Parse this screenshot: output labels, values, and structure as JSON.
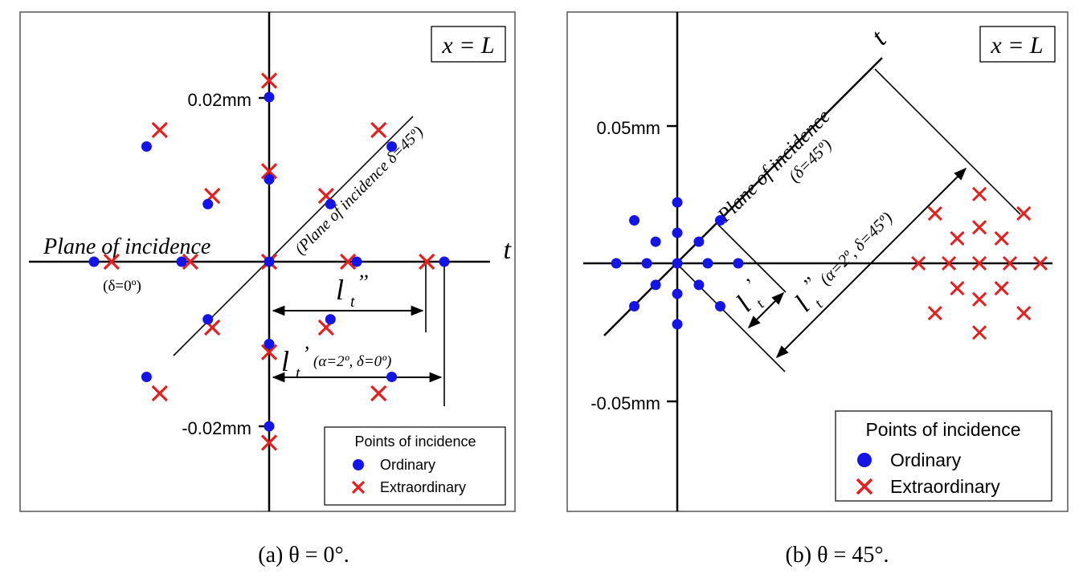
{
  "chart_data": [
    {
      "type": "scatter",
      "caption": "(a) θ = 0°.",
      "xlabel": "t",
      "corner_label": "x = L",
      "ytick_labels": [
        "0.02mm",
        "-0.02mm"
      ],
      "ylim": [
        -0.03,
        0.03
      ],
      "xlim": [
        -0.029,
        0.028
      ],
      "annotations": {
        "plane0": "Plane of incidence",
        "plane0_angle": "(δ=0º)",
        "plane45": "(Plane of incidence δ=45º)",
        "lt2": "l",
        "lt2_sub": "t",
        "lt2_sup": "’’",
        "lt1": "l",
        "lt1_sub": "t",
        "lt1_sup": "’",
        "lt1_params": "(α=2º, δ=0º)"
      },
      "legend": {
        "title": "Points of incidence",
        "position": "bottom-right"
      },
      "series": [
        {
          "name": "Ordinary",
          "color": "#1414e6",
          "marker": "circle",
          "points": [
            [
              0,
              0
            ],
            [
              0.01,
              0
            ],
            [
              -0.01,
              0
            ],
            [
              0.02,
              0
            ],
            [
              -0.02,
              0
            ],
            [
              0,
              0.01
            ],
            [
              0,
              -0.01
            ],
            [
              0,
              0.02
            ],
            [
              0,
              -0.02
            ],
            [
              0.007,
              0.007
            ],
            [
              -0.007,
              -0.007
            ],
            [
              0.014,
              0.014
            ],
            [
              -0.014,
              -0.014
            ],
            [
              -0.007,
              0.007
            ],
            [
              0.007,
              -0.007
            ],
            [
              -0.014,
              0.014
            ],
            [
              0.014,
              -0.014
            ]
          ]
        },
        {
          "name": "Extraordinary",
          "color": "#e61e1e",
          "marker": "x",
          "points": [
            [
              0,
              0
            ],
            [
              0.009,
              0
            ],
            [
              -0.009,
              0
            ],
            [
              0.018,
              0
            ],
            [
              -0.018,
              0
            ],
            [
              0,
              0.011
            ],
            [
              0,
              -0.011
            ],
            [
              0,
              0.022
            ],
            [
              0,
              -0.022
            ],
            [
              0.0065,
              0.008
            ],
            [
              -0.0065,
              -0.008
            ],
            [
              0.0125,
              0.016
            ],
            [
              -0.0125,
              -0.016
            ],
            [
              -0.0065,
              0.008
            ],
            [
              0.0065,
              -0.008
            ],
            [
              -0.0125,
              0.016
            ],
            [
              0.0125,
              -0.016
            ]
          ]
        }
      ]
    },
    {
      "type": "scatter",
      "caption": "(b) θ = 45°.",
      "xlabel": "t",
      "corner_label": "x = L",
      "ytick_labels": [
        "0.05mm",
        "-0.05mm"
      ],
      "ylim": [
        -0.09,
        0.09
      ],
      "xlim": [
        -0.041,
        0.14
      ],
      "annotations": {
        "plane45": "Plane of incidence",
        "plane45_angle": "(δ=45º)",
        "lt1": "l",
        "lt1_sub": "t",
        "lt1_sup": "’",
        "lt2": "l",
        "lt2_sub": "t",
        "lt2_sup": "’’",
        "lt2_params": "(α=2º, δ=45º)"
      },
      "legend": {
        "title": "Points of incidence",
        "position": "bottom-right"
      },
      "series": [
        {
          "name": "Ordinary",
          "color": "#1414e6",
          "marker": "circle",
          "points": [
            [
              0,
              0
            ],
            [
              0.011,
              0
            ],
            [
              -0.011,
              0
            ],
            [
              0.022,
              0
            ],
            [
              -0.022,
              0
            ],
            [
              0,
              0.011
            ],
            [
              0,
              -0.011
            ],
            [
              0,
              0.022
            ],
            [
              0,
              -0.022
            ],
            [
              0.0078,
              0.0078
            ],
            [
              -0.0078,
              -0.0078
            ],
            [
              0.0155,
              0.0155
            ],
            [
              -0.0155,
              -0.0155
            ],
            [
              -0.0078,
              0.0078
            ],
            [
              0.0078,
              -0.0078
            ],
            [
              -0.0155,
              0.0155
            ],
            [
              0.0155,
              -0.0155
            ]
          ]
        },
        {
          "name": "Extraordinary",
          "color": "#e61e1e",
          "marker": "x",
          "points": [
            [
              0.109,
              0
            ],
            [
              0.12,
              0
            ],
            [
              0.098,
              0
            ],
            [
              0.131,
              0
            ],
            [
              0.087,
              0
            ],
            [
              0.109,
              0.013
            ],
            [
              0.109,
              -0.013
            ],
            [
              0.109,
              0.025
            ],
            [
              0.109,
              -0.025
            ],
            [
              0.117,
              0.009
            ],
            [
              0.101,
              -0.009
            ],
            [
              0.125,
              0.018
            ],
            [
              0.093,
              -0.018
            ],
            [
              0.101,
              0.009
            ],
            [
              0.117,
              -0.009
            ],
            [
              0.093,
              0.018
            ],
            [
              0.125,
              -0.018
            ]
          ]
        }
      ]
    }
  ]
}
